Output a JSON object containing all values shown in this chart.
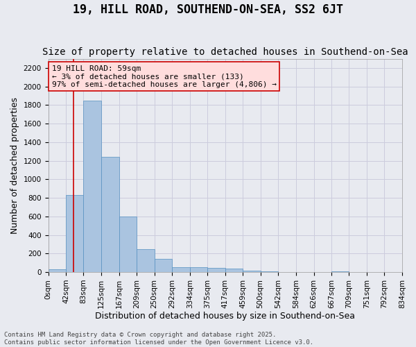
{
  "title": "19, HILL ROAD, SOUTHEND-ON-SEA, SS2 6JT",
  "subtitle": "Size of property relative to detached houses in Southend-on-Sea",
  "xlabel": "Distribution of detached houses by size in Southend-on-Sea",
  "ylabel": "Number of detached properties",
  "annotation_lines": [
    "19 HILL ROAD: 59sqm",
    "← 3% of detached houses are smaller (133)",
    "97% of semi-detached houses are larger (4,806) →"
  ],
  "footer_lines": [
    "Contains HM Land Registry data © Crown copyright and database right 2025.",
    "Contains public sector information licensed under the Open Government Licence v3.0."
  ],
  "bar_edges": [
    0,
    42,
    83,
    125,
    167,
    209,
    250,
    292,
    334,
    375,
    417,
    459,
    500,
    542,
    584,
    626,
    667,
    709,
    751,
    792,
    834
  ],
  "bar_heights": [
    30,
    830,
    1850,
    1240,
    600,
    250,
    145,
    55,
    50,
    45,
    35,
    15,
    5,
    0,
    0,
    0,
    5,
    0,
    0,
    0
  ],
  "bar_color": "#aac4e0",
  "bar_edge_color": "#5590c0",
  "grid_color": "#ccccdd",
  "background_color": "#e8eaf0",
  "annotation_box_color": "#ffdddd",
  "annotation_box_edge": "#cc0000",
  "vline_color": "#cc0000",
  "vline_x": 59,
  "ylim": [
    0,
    2300
  ],
  "yticks": [
    0,
    200,
    400,
    600,
    800,
    1000,
    1200,
    1400,
    1600,
    1800,
    2000,
    2200
  ],
  "tick_labels": [
    "0sqm",
    "42sqm",
    "83sqm",
    "125sqm",
    "167sqm",
    "209sqm",
    "250sqm",
    "292sqm",
    "334sqm",
    "375sqm",
    "417sqm",
    "459sqm",
    "500sqm",
    "542sqm",
    "584sqm",
    "626sqm",
    "667sqm",
    "709sqm",
    "751sqm",
    "792sqm",
    "834sqm"
  ],
  "title_fontsize": 12,
  "subtitle_fontsize": 10,
  "axis_label_fontsize": 9,
  "tick_fontsize": 7.5,
  "annotation_fontsize": 8,
  "footer_fontsize": 6.5
}
